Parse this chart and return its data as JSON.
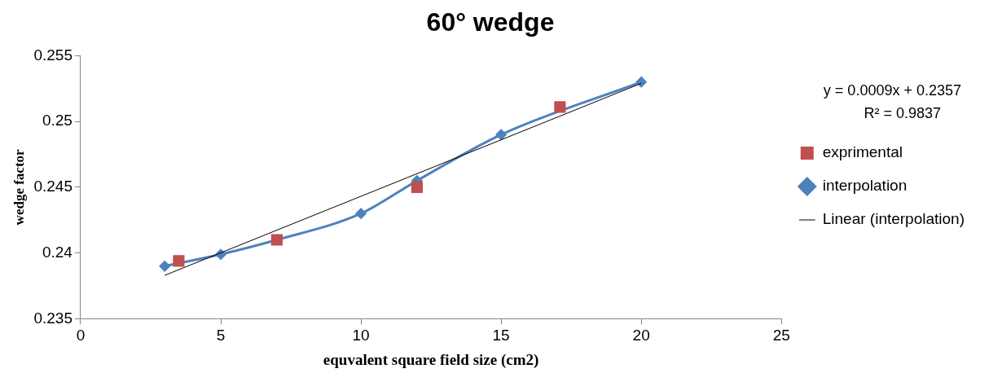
{
  "chart_data": {
    "type": "scatter",
    "title": "60° wedge",
    "xlabel": "equvalent square field size (cm2)",
    "ylabel": "wedge factor",
    "xlim": [
      0,
      25
    ],
    "xticks": [
      0,
      5,
      10,
      15,
      20,
      25
    ],
    "ylim": [
      0.235,
      0.255
    ],
    "yticks": [
      0.235,
      0.24,
      0.245,
      0.25,
      0.255
    ],
    "grid": false,
    "legend": "right",
    "annotations": [
      "y = 0.0009x + 0.2357",
      "R² = 0.9837"
    ],
    "series": [
      {
        "name": "exprimental",
        "type": "scatter",
        "marker": "square",
        "color": "#c0504d",
        "x": [
          3.5,
          7,
          12,
          17.1
        ],
        "values": [
          0.2394,
          0.241,
          0.245,
          0.2511
        ]
      },
      {
        "name": "interpolation",
        "type": "line",
        "marker": "diamond",
        "color": "#4f81bd",
        "x": [
          3,
          5,
          7,
          10,
          12,
          15,
          20
        ],
        "values": [
          0.239,
          0.2399,
          0.241,
          0.243,
          0.2455,
          0.249,
          0.253
        ]
      },
      {
        "name": "Linear (interpolation)",
        "type": "line",
        "marker": "none",
        "color": "#000000",
        "x": [
          3,
          20
        ],
        "values": [
          0.2383,
          0.2529
        ]
      }
    ]
  }
}
